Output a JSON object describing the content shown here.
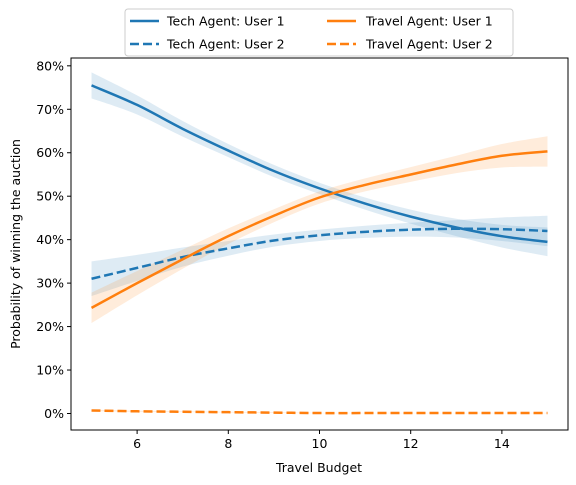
{
  "chart_data": {
    "type": "line",
    "xlabel": "Travel Budget",
    "ylabel": "Probability of winning the auction",
    "xlim": [
      4.55,
      15.45
    ],
    "ylim": [
      -0.038,
      0.818
    ],
    "xticks": [
      6,
      8,
      10,
      12,
      14
    ],
    "xtick_labels": [
      "6",
      "8",
      "10",
      "12",
      "14"
    ],
    "yticks": [
      0,
      0.1,
      0.2,
      0.3,
      0.4,
      0.5,
      0.6,
      0.7,
      0.8
    ],
    "ytick_labels": [
      "0%",
      "10%",
      "20%",
      "30%",
      "40%",
      "50%",
      "60%",
      "70%",
      "80%"
    ],
    "legend_position": "top-center",
    "legend_columns": 2,
    "series": [
      {
        "name": "Tech Agent: User 1",
        "color": "#1f77b4",
        "style": "solid",
        "x": [
          5,
          6,
          7,
          8,
          9,
          10,
          11,
          12,
          13,
          14,
          15
        ],
        "y": [
          0.755,
          0.71,
          0.655,
          0.605,
          0.558,
          0.518,
          0.483,
          0.453,
          0.428,
          0.408,
          0.395
        ],
        "band": [
          0.03,
          0.022,
          0.018,
          0.015,
          0.014,
          0.013,
          0.014,
          0.016,
          0.02,
          0.026,
          0.033
        ]
      },
      {
        "name": "Tech Agent: User 2",
        "color": "#1f77b4",
        "style": "dashed",
        "x": [
          5,
          6,
          7,
          8,
          9,
          10,
          11,
          12,
          13,
          14,
          15
        ],
        "y": [
          0.31,
          0.335,
          0.36,
          0.38,
          0.398,
          0.41,
          0.418,
          0.423,
          0.425,
          0.424,
          0.42
        ],
        "band": [
          0.04,
          0.03,
          0.022,
          0.017,
          0.014,
          0.013,
          0.014,
          0.016,
          0.02,
          0.027,
          0.035
        ]
      },
      {
        "name": "Travel Agent: User 1",
        "color": "#ff7f0e",
        "style": "solid",
        "x": [
          5,
          6,
          7,
          8,
          9,
          10,
          11,
          12,
          13,
          14,
          15
        ],
        "y": [
          0.243,
          0.3,
          0.355,
          0.408,
          0.455,
          0.497,
          0.526,
          0.55,
          0.573,
          0.593,
          0.603
        ],
        "band": [
          0.035,
          0.028,
          0.022,
          0.018,
          0.015,
          0.014,
          0.015,
          0.017,
          0.02,
          0.027,
          0.035
        ]
      },
      {
        "name": "Travel Agent: User 2",
        "color": "#ff7f0e",
        "style": "dashed",
        "x": [
          5,
          6,
          7,
          8,
          9,
          10,
          11,
          12,
          13,
          14,
          15
        ],
        "y": [
          0.007,
          0.005,
          0.004,
          0.003,
          0.002,
          0.001,
          0.001,
          0.001,
          0.001,
          0.001,
          0.001
        ],
        "band": [
          0.002,
          0.0015,
          0.001,
          0.001,
          0.001,
          0.0005,
          0.0005,
          0.0005,
          0.0005,
          0.0005,
          0.0005
        ]
      }
    ]
  }
}
